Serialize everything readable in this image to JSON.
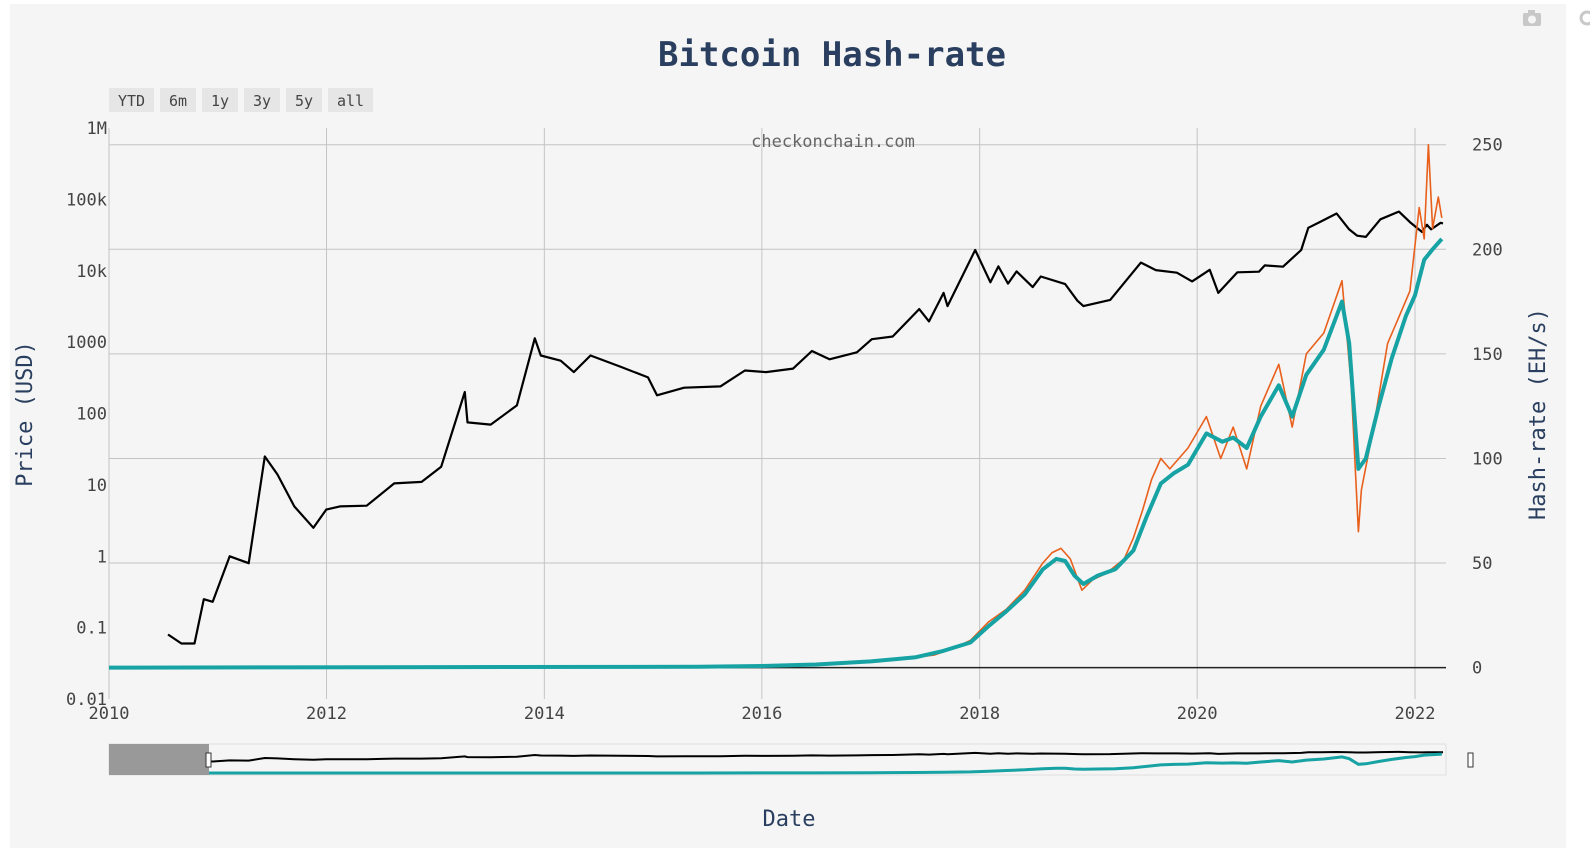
{
  "chart_data": {
    "type": "line",
    "title": "Bitcoin Hash-rate",
    "watermark": "checkonchain.com",
    "xlabel": "Date",
    "ylabel_left": "Price (USD)",
    "ylabel_right": "Hash-rate (EH/s)",
    "range_buttons": [
      "YTD",
      "6m",
      "1y",
      "3y",
      "5y",
      "all"
    ],
    "x_range": [
      "2010-01-01",
      "2022-04-15"
    ],
    "x_ticks": [
      {
        "date": "2010-01-01",
        "label": "2010"
      },
      {
        "date": "2012-01-01",
        "label": "2012"
      },
      {
        "date": "2014-01-01",
        "label": "2014"
      },
      {
        "date": "2016-01-01",
        "label": "2016"
      },
      {
        "date": "2018-01-01",
        "label": "2018"
      },
      {
        "date": "2020-01-01",
        "label": "2020"
      },
      {
        "date": "2022-01-01",
        "label": "2022"
      }
    ],
    "y_left": {
      "scale": "log",
      "range": [
        0.01,
        1000000
      ],
      "ticks": [
        {
          "value": 0.01,
          "label": "0.01"
        },
        {
          "value": 0.1,
          "label": "0.1"
        },
        {
          "value": 1,
          "label": "1"
        },
        {
          "value": 10,
          "label": "10"
        },
        {
          "value": 100,
          "label": "100"
        },
        {
          "value": 1000,
          "label": "1000"
        },
        {
          "value": 10000,
          "label": "10k"
        },
        {
          "value": 100000,
          "label": "100k"
        },
        {
          "value": 1000000,
          "label": "1M"
        }
      ]
    },
    "y_right": {
      "scale": "linear",
      "range": [
        -15,
        258
      ],
      "ticks": [
        {
          "value": 0,
          "label": "0"
        },
        {
          "value": 50,
          "label": "50"
        },
        {
          "value": 100,
          "label": "100"
        },
        {
          "value": 150,
          "label": "150"
        },
        {
          "value": 200,
          "label": "200"
        },
        {
          "value": 250,
          "label": "250"
        }
      ]
    },
    "grid": true,
    "colors": {
      "price": "#000000",
      "hashrate_raw": "#e8601c",
      "hashrate_ma": "#17a2a4",
      "text": "#2a3f5f"
    },
    "series": [
      {
        "role": "price",
        "axis": "left",
        "points": [
          [
            "2010-07-18",
            0.08
          ],
          [
            "2010-09-01",
            0.06
          ],
          [
            "2010-10-15",
            0.06
          ],
          [
            "2010-11-15",
            0.25
          ],
          [
            "2010-12-15",
            0.23
          ],
          [
            "2011-02-10",
            1.0
          ],
          [
            "2011-04-15",
            0.8
          ],
          [
            "2011-06-08",
            25
          ],
          [
            "2011-07-20",
            14
          ],
          [
            "2011-09-15",
            5
          ],
          [
            "2011-11-18",
            2.5
          ],
          [
            "2011-12-31",
            4.5
          ],
          [
            "2012-02-15",
            5
          ],
          [
            "2012-05-15",
            5.1
          ],
          [
            "2012-08-15",
            10.5
          ],
          [
            "2012-11-15",
            11
          ],
          [
            "2013-01-20",
            18
          ],
          [
            "2013-04-09",
            200
          ],
          [
            "2013-04-18",
            75
          ],
          [
            "2013-07-05",
            70
          ],
          [
            "2013-10-01",
            130
          ],
          [
            "2013-11-30",
            1130
          ],
          [
            "2013-12-20",
            650
          ],
          [
            "2014-02-25",
            550
          ],
          [
            "2014-04-10",
            380
          ],
          [
            "2014-06-05",
            650
          ],
          [
            "2014-09-15",
            450
          ],
          [
            "2014-12-15",
            320
          ],
          [
            "2015-01-14",
            180
          ],
          [
            "2015-04-15",
            230
          ],
          [
            "2015-08-15",
            240
          ],
          [
            "2015-11-05",
            400
          ],
          [
            "2016-01-15",
            380
          ],
          [
            "2016-04-15",
            425
          ],
          [
            "2016-06-17",
            750
          ],
          [
            "2016-08-15",
            575
          ],
          [
            "2016-11-15",
            720
          ],
          [
            "2017-01-04",
            1100
          ],
          [
            "2017-03-15",
            1200
          ],
          [
            "2017-06-12",
            2900
          ],
          [
            "2017-07-15",
            1950
          ],
          [
            "2017-09-02",
            4900
          ],
          [
            "2017-09-15",
            3200
          ],
          [
            "2017-12-17",
            19500
          ],
          [
            "2018-02-06",
            6900
          ],
          [
            "2018-03-05",
            11500
          ],
          [
            "2018-04-06",
            6600
          ],
          [
            "2018-05-05",
            9800
          ],
          [
            "2018-06-28",
            5900
          ],
          [
            "2018-07-25",
            8300
          ],
          [
            "2018-10-15",
            6500
          ],
          [
            "2018-11-25",
            3800
          ],
          [
            "2018-12-15",
            3200
          ],
          [
            "2019-03-15",
            3900
          ],
          [
            "2019-06-26",
            13000
          ],
          [
            "2019-08-15",
            10200
          ],
          [
            "2019-10-25",
            9400
          ],
          [
            "2019-12-15",
            7100
          ],
          [
            "2020-02-12",
            10300
          ],
          [
            "2020-03-12",
            4900
          ],
          [
            "2020-05-15",
            9500
          ],
          [
            "2020-07-26",
            9700
          ],
          [
            "2020-08-15",
            11900
          ],
          [
            "2020-10-15",
            11400
          ],
          [
            "2020-12-15",
            19500
          ],
          [
            "2021-01-08",
            40000
          ],
          [
            "2021-02-15",
            48000
          ],
          [
            "2021-04-13",
            63500
          ],
          [
            "2021-05-25",
            38000
          ],
          [
            "2021-06-21",
            31000
          ],
          [
            "2021-07-20",
            29800
          ],
          [
            "2021-09-07",
            52500
          ],
          [
            "2021-11-08",
            67500
          ],
          [
            "2021-12-15",
            48000
          ],
          [
            "2022-01-24",
            35000
          ],
          [
            "2022-02-10",
            44000
          ],
          [
            "2022-02-24",
            38000
          ],
          [
            "2022-03-28",
            47000
          ],
          [
            "2022-04-05",
            46000
          ]
        ]
      },
      {
        "role": "hashrate_raw",
        "axis": "right",
        "points": [
          [
            "2017-06-01",
            5
          ],
          [
            "2017-08-01",
            6
          ],
          [
            "2017-10-01",
            9
          ],
          [
            "2017-12-01",
            13
          ],
          [
            "2018-02-01",
            22
          ],
          [
            "2018-04-01",
            28
          ],
          [
            "2018-06-01",
            37
          ],
          [
            "2018-08-01",
            50
          ],
          [
            "2018-09-01",
            55
          ],
          [
            "2018-10-01",
            57
          ],
          [
            "2018-11-01",
            52
          ],
          [
            "2018-12-10",
            37
          ],
          [
            "2019-01-15",
            42
          ],
          [
            "2019-03-01",
            45
          ],
          [
            "2019-05-01",
            52
          ],
          [
            "2019-06-01",
            62
          ],
          [
            "2019-07-01",
            75
          ],
          [
            "2019-08-01",
            90
          ],
          [
            "2019-09-01",
            100
          ],
          [
            "2019-10-01",
            95
          ],
          [
            "2019-12-01",
            105
          ],
          [
            "2020-02-01",
            120
          ],
          [
            "2020-03-20",
            100
          ],
          [
            "2020-05-01",
            115
          ],
          [
            "2020-06-15",
            95
          ],
          [
            "2020-08-01",
            125
          ],
          [
            "2020-10-01",
            145
          ],
          [
            "2020-11-15",
            115
          ],
          [
            "2021-01-01",
            150
          ],
          [
            "2021-03-01",
            160
          ],
          [
            "2021-05-01",
            185
          ],
          [
            "2021-06-01",
            135
          ],
          [
            "2021-06-25",
            65
          ],
          [
            "2021-07-05",
            85
          ],
          [
            "2021-08-15",
            115
          ],
          [
            "2021-10-01",
            155
          ],
          [
            "2021-11-15",
            170
          ],
          [
            "2021-12-15",
            180
          ],
          [
            "2022-01-15",
            220
          ],
          [
            "2022-02-01",
            205
          ],
          [
            "2022-02-15",
            250
          ],
          [
            "2022-03-01",
            210
          ],
          [
            "2022-03-20",
            225
          ],
          [
            "2022-04-01",
            215
          ]
        ]
      },
      {
        "role": "hashrate_ma",
        "axis": "right",
        "points": [
          [
            "2010-01-01",
            0
          ],
          [
            "2015-06-01",
            0.4
          ],
          [
            "2016-01-01",
            0.8
          ],
          [
            "2016-07-01",
            1.5
          ],
          [
            "2017-01-01",
            3
          ],
          [
            "2017-06-01",
            5
          ],
          [
            "2017-09-01",
            8
          ],
          [
            "2017-12-01",
            12
          ],
          [
            "2018-02-01",
            20
          ],
          [
            "2018-04-01",
            27
          ],
          [
            "2018-06-01",
            35
          ],
          [
            "2018-08-01",
            47
          ],
          [
            "2018-09-15",
            52
          ],
          [
            "2018-10-15",
            51
          ],
          [
            "2018-11-15",
            44
          ],
          [
            "2018-12-15",
            40
          ],
          [
            "2019-02-01",
            44
          ],
          [
            "2019-04-01",
            47
          ],
          [
            "2019-06-01",
            56
          ],
          [
            "2019-07-15",
            72
          ],
          [
            "2019-09-01",
            88
          ],
          [
            "2019-10-15",
            93
          ],
          [
            "2019-12-01",
            97
          ],
          [
            "2020-02-01",
            112
          ],
          [
            "2020-03-25",
            108
          ],
          [
            "2020-05-01",
            110
          ],
          [
            "2020-06-15",
            105
          ],
          [
            "2020-08-01",
            120
          ],
          [
            "2020-10-01",
            135
          ],
          [
            "2020-11-15",
            120
          ],
          [
            "2021-01-01",
            140
          ],
          [
            "2021-03-01",
            152
          ],
          [
            "2021-05-01",
            175
          ],
          [
            "2021-05-25",
            155
          ],
          [
            "2021-06-25",
            95
          ],
          [
            "2021-07-20",
            100
          ],
          [
            "2021-09-01",
            125
          ],
          [
            "2021-10-15",
            148
          ],
          [
            "2021-12-01",
            168
          ],
          [
            "2022-01-01",
            178
          ],
          [
            "2022-02-01",
            195
          ],
          [
            "2022-03-01",
            200
          ],
          [
            "2022-04-01",
            205
          ]
        ]
      }
    ]
  }
}
